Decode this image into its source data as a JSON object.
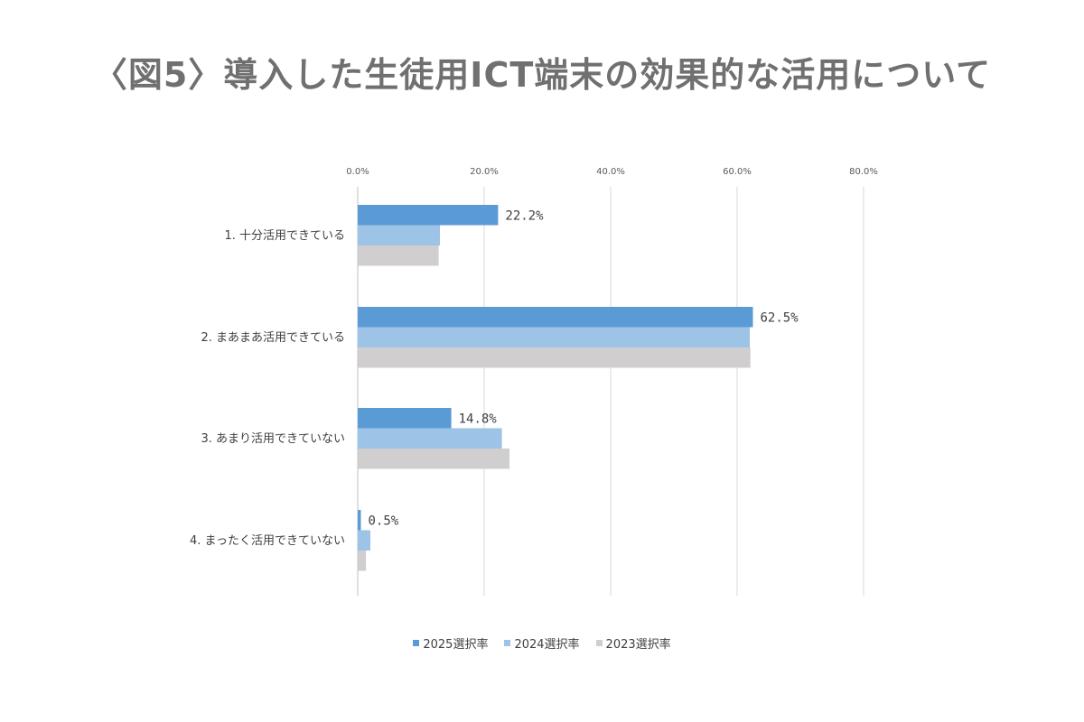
{
  "title": "〈図5〉導入した生徒用ICT端末の効果的な活用について",
  "chart_data": {
    "type": "bar",
    "orientation": "horizontal",
    "title": "〈図5〉導入した生徒用ICT端末の効果的な活用について",
    "categories": [
      "1.  十分活用できている",
      "2.  まあまあ活用できている",
      "3.  あまり活用できていない",
      "4.  まったく活用できていない"
    ],
    "series": [
      {
        "name": "2025選択率",
        "color": "#5B9BD5",
        "values": [
          22.2,
          62.5,
          14.8,
          0.5
        ],
        "labels": [
          "22.2%",
          "62.5%",
          "14.8%",
          "0.5%"
        ]
      },
      {
        "name": "2024選択率",
        "color": "#9DC3E6",
        "values": [
          13.0,
          62.0,
          22.8,
          2.0
        ]
      },
      {
        "name": "2023選択率",
        "color": "#D0CECE",
        "values": [
          12.8,
          62.1,
          24.0,
          1.3
        ]
      }
    ],
    "xlim": [
      0,
      80
    ],
    "xticks": [
      "0.0%",
      "20.0%",
      "40.0%",
      "60.0%",
      "80.0%"
    ],
    "xtick_values": [
      0,
      20,
      40,
      60,
      80
    ],
    "grid": true,
    "legend_position": "bottom"
  }
}
